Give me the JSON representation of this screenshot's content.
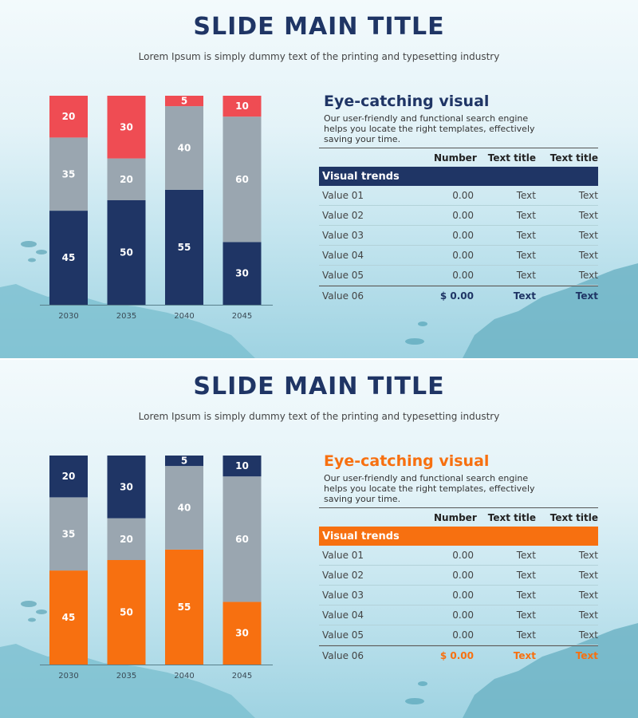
{
  "colors": {
    "navy": "#1f3565",
    "red": "#ef4c53",
    "orange": "#f77010",
    "gray": "#9aa6b0"
  },
  "slides": [
    {
      "title": "SLIDE MAIN TITLE",
      "subtitle": "Lorem Ipsum is simply dummy text of the printing and typesetting industry",
      "panel_heading": "Eye-catching visual",
      "panel_text": "Our user-friendly and functional search engine helps you locate the right templates, effectively saving your time.",
      "accent": "#1f3565",
      "table": {
        "headers": [
          "",
          "Number",
          "Text title",
          "Text title"
        ],
        "band_label": "Visual trends",
        "rows": [
          [
            "Value 01",
            "0.00",
            "Text",
            "Text"
          ],
          [
            "Value 02",
            "0.00",
            "Text",
            "Text"
          ],
          [
            "Value 03",
            "0.00",
            "Text",
            "Text"
          ],
          [
            "Value 04",
            "0.00",
            "Text",
            "Text"
          ],
          [
            "Value 05",
            "0.00",
            "Text",
            "Text"
          ],
          [
            "Value 06",
            "$ 0.00",
            "Text",
            "Text"
          ]
        ]
      }
    },
    {
      "title": "SLIDE MAIN TITLE",
      "subtitle": "Lorem Ipsum is simply dummy text of the printing and typesetting industry",
      "panel_heading": "Eye-catching visual",
      "panel_text": "Our user-friendly and functional search engine helps you locate the right templates, effectively saving your time.",
      "accent": "#f77010",
      "table": {
        "headers": [
          "",
          "Number",
          "Text title",
          "Text title"
        ],
        "band_label": "Visual trends",
        "rows": [
          [
            "Value 01",
            "0.00",
            "Text",
            "Text"
          ],
          [
            "Value 02",
            "0.00",
            "Text",
            "Text"
          ],
          [
            "Value 03",
            "0.00",
            "Text",
            "Text"
          ],
          [
            "Value 04",
            "0.00",
            "Text",
            "Text"
          ],
          [
            "Value 05",
            "0.00",
            "Text",
            "Text"
          ],
          [
            "Value 06",
            "$ 0.00",
            "Text",
            "Text"
          ]
        ]
      }
    }
  ],
  "chart_data": [
    {
      "type": "bar",
      "stacked": true,
      "categories": [
        "2030",
        "2035",
        "2040",
        "2045"
      ],
      "series": [
        {
          "values": [
            45,
            50,
            55,
            30
          ],
          "color": "#1f3565"
        },
        {
          "values": [
            35,
            20,
            40,
            60
          ],
          "color": "#9aa6b0"
        },
        {
          "values": [
            20,
            30,
            5,
            10
          ],
          "color": "#ef4c53"
        }
      ],
      "ylim": [
        0,
        100
      ],
      "grid": false
    },
    {
      "type": "bar",
      "stacked": true,
      "categories": [
        "2030",
        "2035",
        "2040",
        "2045"
      ],
      "series": [
        {
          "values": [
            45,
            50,
            55,
            30
          ],
          "color": "#f77010"
        },
        {
          "values": [
            35,
            20,
            40,
            60
          ],
          "color": "#9aa6b0"
        },
        {
          "values": [
            20,
            30,
            5,
            10
          ],
          "color": "#1f3565"
        }
      ],
      "ylim": [
        0,
        100
      ],
      "grid": false
    }
  ]
}
